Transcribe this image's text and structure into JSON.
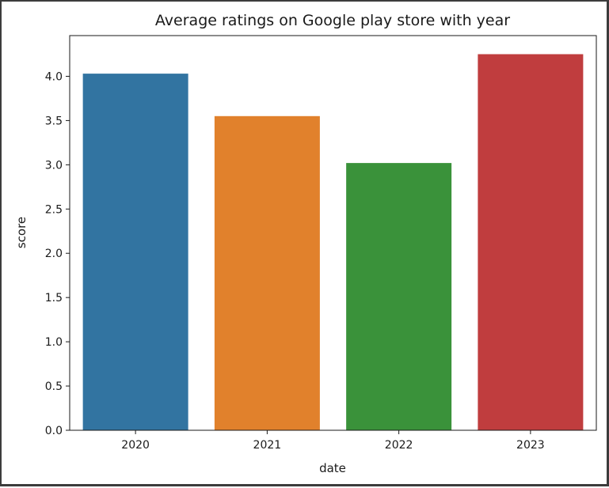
{
  "chart_data": {
    "type": "bar",
    "title": "Average ratings on Google play store with year",
    "xlabel": "date",
    "ylabel": "score",
    "categories": [
      "2020",
      "2021",
      "2022",
      "2023"
    ],
    "values": [
      4.03,
      3.55,
      3.02,
      4.25
    ],
    "colors": [
      "#3274a1",
      "#e1812c",
      "#3a923a",
      "#c03d3e"
    ],
    "ylim": [
      0,
      4.46
    ],
    "yticks": [
      0.0,
      0.5,
      1.0,
      1.5,
      2.0,
      2.5,
      3.0,
      3.5,
      4.0
    ],
    "ytick_labels": [
      "0.0",
      "0.5",
      "1.0",
      "1.5",
      "2.0",
      "2.5",
      "3.0",
      "3.5",
      "4.0"
    ],
    "grid": false,
    "legend": "none"
  }
}
